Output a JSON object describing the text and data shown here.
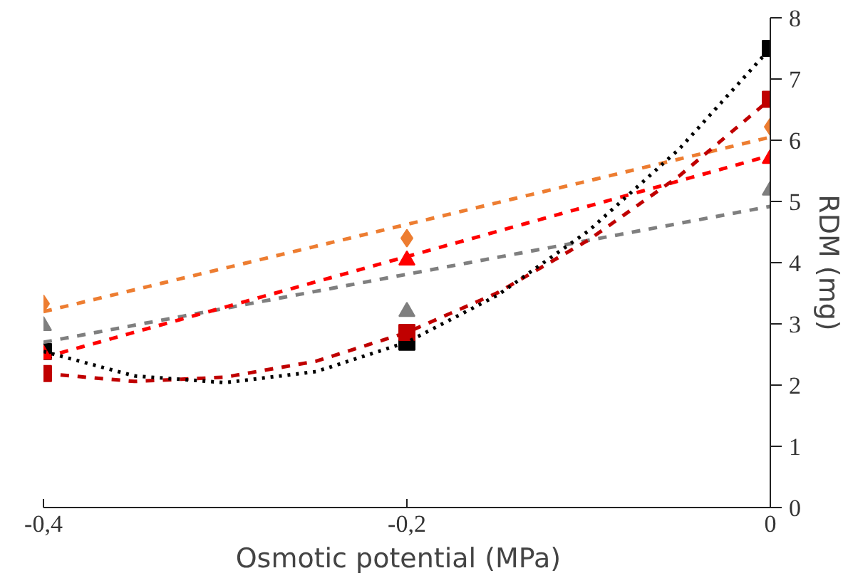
{
  "chart_data": {
    "type": "scatter",
    "xlabel": "Osmotic potential   (MPa)",
    "ylabel": "RDM (mg)",
    "x": [
      -0.4,
      -0.2,
      0
    ],
    "xlim": [
      -0.4,
      0
    ],
    "xticks": [
      {
        "value": -0.4,
        "label": "-0,4"
      },
      {
        "value": -0.2,
        "label": "-0,2"
      },
      {
        "value": 0,
        "label": "0"
      }
    ],
    "ylim": [
      0,
      8
    ],
    "yticks": [
      0,
      1,
      2,
      3,
      4,
      5,
      6,
      7,
      8
    ],
    "grid": false,
    "series": [
      {
        "color": "#000000",
        "marker": "square",
        "values": [
          2.55,
          2.7,
          7.5
        ]
      },
      {
        "color": "#c00000",
        "marker": "square",
        "values": [
          2.19,
          2.86,
          6.67
        ]
      },
      {
        "color": "#ed7d31",
        "marker": "diamond",
        "values": [
          3.33,
          4.4,
          6.22
        ]
      },
      {
        "color": "#ff0000",
        "marker": "triangle",
        "values": [
          2.5,
          4.04,
          5.7
        ]
      },
      {
        "color": "#7f7f7f",
        "marker": "triangle",
        "values": [
          2.97,
          3.2,
          5.18
        ]
      },
      {
        "type": "line",
        "color": "#7f7f7f",
        "line_style": "dashed",
        "x": [
          -0.4,
          0
        ],
        "values": [
          2.7,
          4.92
        ]
      },
      {
        "type": "line",
        "color": "#ed7d31",
        "line_style": "dashed",
        "x": [
          -0.4,
          0
        ],
        "values": [
          3.2,
          6.05
        ]
      },
      {
        "type": "line",
        "color": "#ff0000",
        "line_style": "dashed",
        "x": [
          -0.4,
          0
        ],
        "values": [
          2.45,
          5.75
        ]
      },
      {
        "type": "line",
        "color": "#c00000",
        "line_style": "dashed",
        "x": [
          -0.4,
          -0.35,
          -0.3,
          -0.25,
          -0.2,
          -0.15,
          -0.1,
          -0.05,
          0
        ],
        "values": [
          2.19,
          2.06,
          2.13,
          2.39,
          2.86,
          3.51,
          4.37,
          5.42,
          6.67
        ]
      },
      {
        "type": "line",
        "color": "#000000",
        "line_style": "dotted",
        "x": [
          -0.4,
          -0.35,
          -0.3,
          -0.25,
          -0.2,
          -0.15,
          -0.1,
          -0.05,
          0
        ],
        "values": [
          2.55,
          2.15,
          2.04,
          2.22,
          2.7,
          3.47,
          4.52,
          5.86,
          7.5
        ]
      }
    ]
  }
}
